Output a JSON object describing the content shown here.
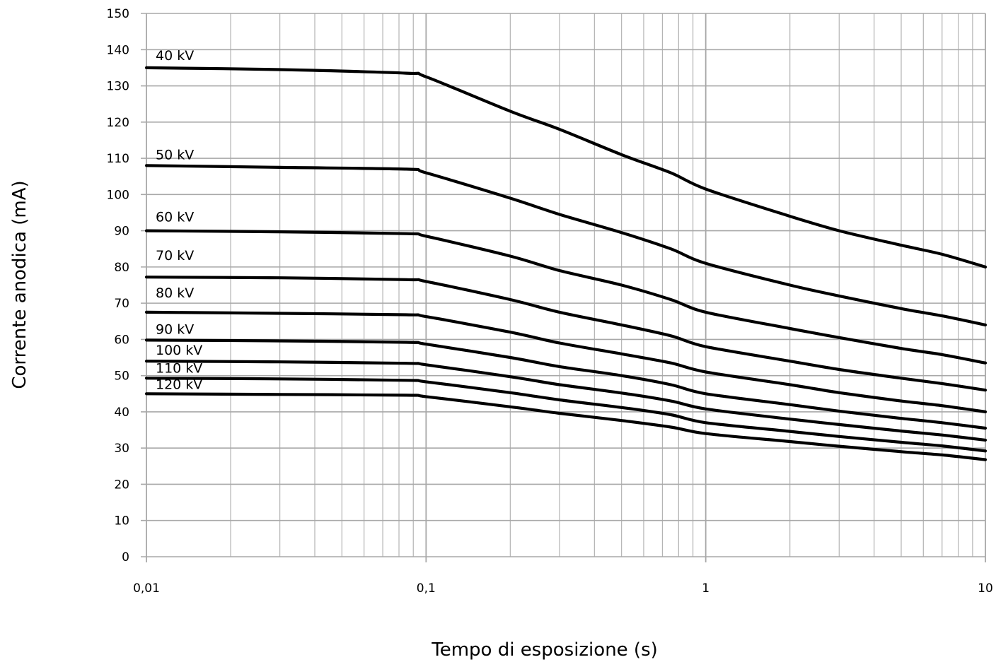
{
  "chart_data": {
    "type": "line",
    "title": "",
    "xlabel": "Tempo di esposizione (s)",
    "ylabel": "Corrente anodica (mA)",
    "x_scale": "log",
    "xlim": [
      0.01,
      10
    ],
    "ylim": [
      0,
      150
    ],
    "x_ticks": [
      {
        "value": 0.01,
        "label": "0,01"
      },
      {
        "value": 0.1,
        "label": "0,1"
      },
      {
        "value": 1,
        "label": "1"
      },
      {
        "value": 10,
        "label": "10"
      }
    ],
    "y_ticks": [
      {
        "value": 0,
        "label": "0"
      },
      {
        "value": 10,
        "label": "10"
      },
      {
        "value": 20,
        "label": "20"
      },
      {
        "value": 30,
        "label": "30"
      },
      {
        "value": 40,
        "label": "40"
      },
      {
        "value": 50,
        "label": "50"
      },
      {
        "value": 60,
        "label": "60"
      },
      {
        "value": 70,
        "label": "70"
      },
      {
        "value": 80,
        "label": "80"
      },
      {
        "value": 90,
        "label": "90"
      },
      {
        "value": 100,
        "label": "100"
      },
      {
        "value": 110,
        "label": "110"
      },
      {
        "value": 120,
        "label": "120"
      },
      {
        "value": 130,
        "label": "130"
      },
      {
        "value": 140,
        "label": "140"
      },
      {
        "value": 150,
        "label": "150"
      }
    ],
    "grid": true,
    "line_color": "#000000",
    "grid_color": "#b3b3b3",
    "series": [
      {
        "name": "40 kV",
        "x": [
          0.01,
          0.03,
          0.085,
          0.1,
          0.2,
          0.3,
          0.5,
          0.75,
          1,
          2,
          3,
          5,
          7,
          10
        ],
        "y": [
          135,
          134.5,
          133.5,
          132.5,
          123,
          118,
          111,
          106,
          101.5,
          94,
          90,
          86,
          83.5,
          80
        ]
      },
      {
        "name": "50 kV",
        "x": [
          0.01,
          0.03,
          0.085,
          0.1,
          0.2,
          0.3,
          0.5,
          0.75,
          1,
          2,
          3,
          5,
          7,
          10
        ],
        "y": [
          108,
          107.5,
          107,
          106,
          99,
          94.5,
          89.5,
          85,
          81,
          75,
          72,
          68.5,
          66.5,
          64
        ]
      },
      {
        "name": "60 kV",
        "x": [
          0.01,
          0.03,
          0.085,
          0.1,
          0.2,
          0.3,
          0.5,
          0.75,
          1,
          2,
          3,
          5,
          7,
          10
        ],
        "y": [
          90,
          89.7,
          89.2,
          88.5,
          83,
          79,
          75,
          71,
          67.5,
          63,
          60.5,
          57.5,
          55.8,
          53.5
        ]
      },
      {
        "name": "70 kV",
        "x": [
          0.01,
          0.03,
          0.085,
          0.1,
          0.2,
          0.3,
          0.5,
          0.75,
          1,
          2,
          3,
          5,
          7,
          10
        ],
        "y": [
          77.2,
          77,
          76.5,
          76,
          71,
          67.5,
          64,
          61,
          58,
          54,
          51.7,
          49.3,
          47.8,
          46
        ]
      },
      {
        "name": "80 kV",
        "x": [
          0.01,
          0.03,
          0.085,
          0.1,
          0.2,
          0.3,
          0.5,
          0.75,
          1,
          2,
          3,
          5,
          7,
          10
        ],
        "y": [
          67.5,
          67.2,
          66.8,
          66.3,
          62,
          59,
          56,
          53.5,
          51,
          47.5,
          45.3,
          43,
          41.7,
          40
        ]
      },
      {
        "name": "90 kV",
        "x": [
          0.01,
          0.03,
          0.085,
          0.1,
          0.2,
          0.3,
          0.5,
          0.75,
          1,
          2,
          3,
          5,
          7,
          10
        ],
        "y": [
          59.8,
          59.6,
          59.2,
          58.7,
          55,
          52.5,
          50,
          47.5,
          45,
          42,
          40.2,
          38.2,
          37,
          35.5
        ]
      },
      {
        "name": "100 kV",
        "x": [
          0.01,
          0.03,
          0.085,
          0.1,
          0.2,
          0.3,
          0.5,
          0.75,
          1,
          2,
          3,
          5,
          7,
          10
        ],
        "y": [
          54,
          53.8,
          53.4,
          53,
          49.7,
          47.5,
          45.2,
          43,
          40.8,
          38,
          36.5,
          34.7,
          33.6,
          32.2
        ]
      },
      {
        "name": "110 kV",
        "x": [
          0.01,
          0.03,
          0.085,
          0.1,
          0.2,
          0.3,
          0.5,
          0.75,
          1,
          2,
          3,
          5,
          7,
          10
        ],
        "y": [
          49.3,
          49.1,
          48.7,
          48.3,
          45.3,
          43.3,
          41.2,
          39.2,
          37,
          34.6,
          33.2,
          31.6,
          30.6,
          29.2
        ]
      },
      {
        "name": "120 kV",
        "x": [
          0.01,
          0.03,
          0.085,
          0.1,
          0.2,
          0.3,
          0.5,
          0.75,
          1,
          2,
          3,
          5,
          7,
          10
        ],
        "y": [
          45,
          44.8,
          44.6,
          44.2,
          41.4,
          39.6,
          37.6,
          35.8,
          34,
          31.8,
          30.5,
          29,
          28.1,
          26.8
        ]
      }
    ]
  }
}
